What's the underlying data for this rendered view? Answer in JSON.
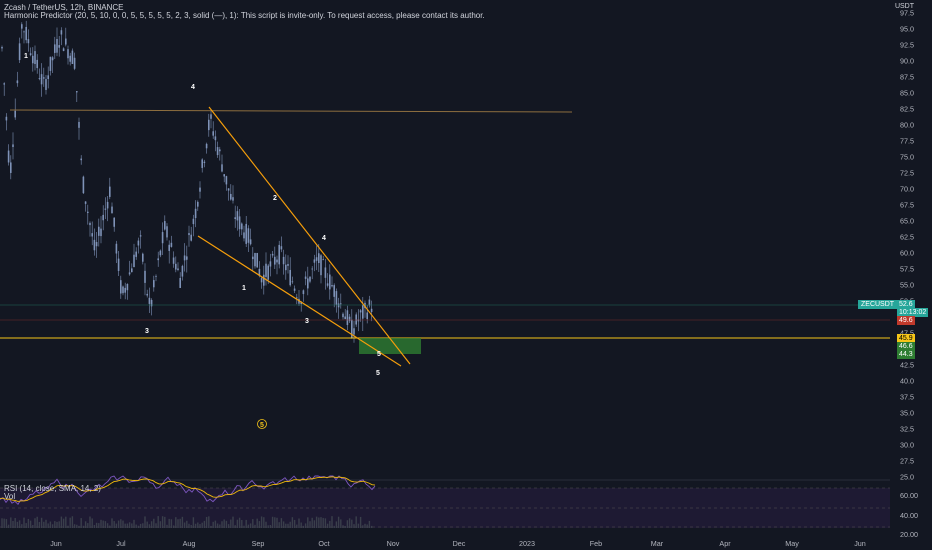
{
  "header": {
    "symbol_line": "Zcash / TetherUS, 12h, BINANCE",
    "indicator_line": "Harmonic Predictor (20, 5, 10, 0, 0, 5, 5, 5, 5, 5, 2, 3, solid (—), 1): This script is invite-only. To request access, please contact its author."
  },
  "price_axis": {
    "currency": "USDT",
    "labels": [
      "97.5",
      "95.0",
      "92.5",
      "90.0",
      "87.5",
      "85.0",
      "82.5",
      "80.0",
      "77.5",
      "75.0",
      "72.5",
      "70.0",
      "67.5",
      "65.0",
      "62.5",
      "60.0",
      "57.5",
      "55.0",
      "52.5",
      "50.0",
      "47.5",
      "45.0",
      "42.5",
      "40.0",
      "37.5",
      "35.0",
      "32.5",
      "30.0",
      "27.5",
      "25.0"
    ]
  },
  "price_tags": {
    "symbol": "ZECUSDT",
    "current": "52.6",
    "countdown": "10:13:02",
    "level_red": "49.6",
    "level_yellow": "45.9",
    "level_green1": "46.6",
    "level_green2": "44.3"
  },
  "time_axis": {
    "labels": [
      "Jun",
      "Jul",
      "Aug",
      "Sep",
      "Oct",
      "Nov",
      "Dec",
      "2023",
      "Feb",
      "Mar",
      "Apr",
      "May",
      "Jun"
    ]
  },
  "wave_labels": {
    "w1a": "1",
    "w4a": "4",
    "w2a": "2",
    "w4b": "4",
    "w1b": "1",
    "w3a": "3",
    "w3b": "3",
    "w5a": "5",
    "w5b": "5",
    "circ": "5"
  },
  "rsi": {
    "legend": "RSI (14, close, SMA, 14, 2)",
    "vol_legend": "Vol",
    "axis": [
      "60.00",
      "40.00",
      "20.00"
    ]
  },
  "colors": {
    "background": "#131722",
    "candles": "#7f93b8",
    "trendline": "#f59e0b",
    "hline_yellow": "#f5c518",
    "target_box": "#2e7d32",
    "rsi_line": "#7e57c2",
    "rsi_sma": "#f0b90b",
    "accent_green": "#26a69a"
  }
}
